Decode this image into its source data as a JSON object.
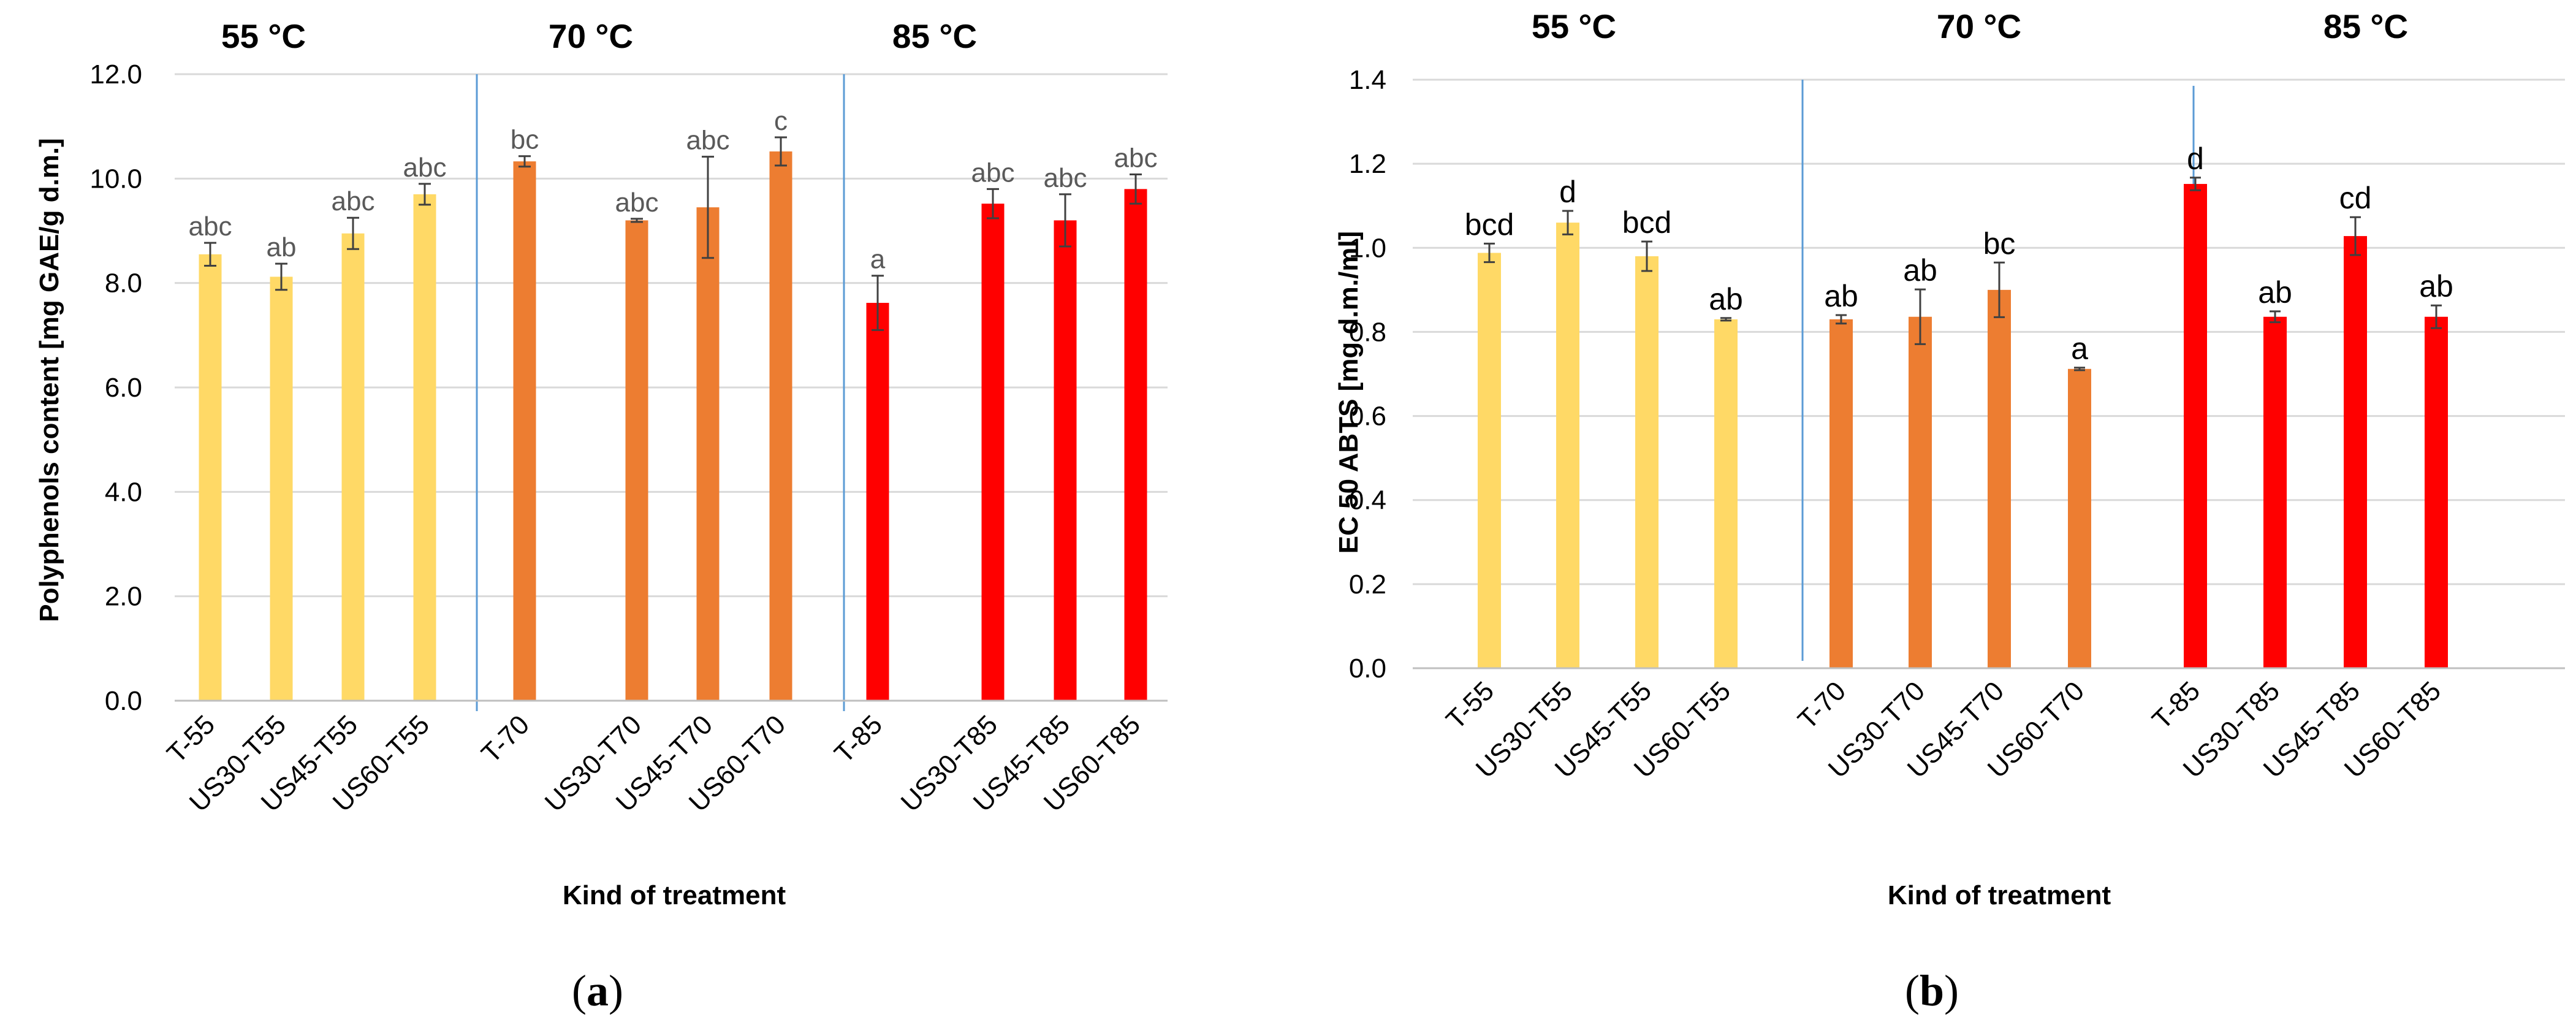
{
  "chart_data": [
    {
      "type": "bar",
      "panel": "(a)",
      "panel_letter": "a",
      "ylabel": "Polyphenols content [mg GAE/g d.m.]",
      "xlabel": "Kind of treatment",
      "ylim": [
        0,
        12
      ],
      "yticks": [
        "0.0",
        "2.0",
        "4.0",
        "6.0",
        "8.0",
        "10.0",
        "12.0"
      ],
      "grid": true,
      "groups": [
        "55 °C",
        "70 °C",
        "85 °C"
      ],
      "colors": [
        "#FFD966",
        "#ED7D31",
        "#FF0000"
      ],
      "categories": [
        "T-55",
        "US30-T55",
        "US45-T55",
        "US60-T55",
        "T-70",
        "US30-T70",
        "US45-T70",
        "US60-T70",
        "T-85",
        "US30-T85",
        "US45-T85",
        "US60-T85"
      ],
      "values": [
        8.55,
        8.12,
        8.95,
        9.7,
        10.33,
        9.2,
        9.45,
        10.52,
        7.62,
        9.52,
        9.2,
        9.8
      ],
      "errors": [
        0.22,
        0.25,
        0.3,
        0.2,
        0.1,
        0.03,
        0.97,
        0.27,
        0.52,
        0.28,
        0.5,
        0.28
      ],
      "letters": [
        "abc",
        "ab",
        "abc",
        "abc",
        "bc",
        "abc",
        "abc",
        "c",
        "a",
        "abc",
        "abc",
        "abc"
      ]
    },
    {
      "type": "bar",
      "panel": "(b)",
      "panel_letter": "b",
      "ylabel": "EC 50 ABTS [mg d.m./ml]",
      "xlabel": "Kind of treatment",
      "ylim": [
        0,
        1.4
      ],
      "yticks": [
        "0.0",
        "0.2",
        "0.4",
        "0.6",
        "0.8",
        "1.0",
        "1.2",
        "1.4"
      ],
      "grid": true,
      "groups": [
        "55 °C",
        "70 °C",
        "85 °C"
      ],
      "colors": [
        "#FFD966",
        "#ED7D31",
        "#FF0000"
      ],
      "categories": [
        "T-55",
        "US30-T55",
        "US45-T55",
        "US60-T55",
        "T-70",
        "US30-T70",
        "US45-T70",
        "US60-T70",
        "T-85",
        "US30-T85",
        "US45-T85",
        "US60-T85"
      ],
      "values": [
        0.988,
        1.06,
        0.98,
        0.83,
        0.83,
        0.836,
        0.9,
        0.712,
        1.152,
        0.836,
        1.028,
        0.836
      ],
      "errors": [
        0.022,
        0.028,
        0.035,
        0.003,
        0.01,
        0.065,
        0.065,
        0.003,
        0.015,
        0.013,
        0.045,
        0.027
      ],
      "letters": [
        "bcd",
        "d",
        "bcd",
        "ab",
        "ab",
        "ab",
        "bc",
        "a",
        "d",
        "ab",
        "cd",
        "ab"
      ]
    }
  ]
}
